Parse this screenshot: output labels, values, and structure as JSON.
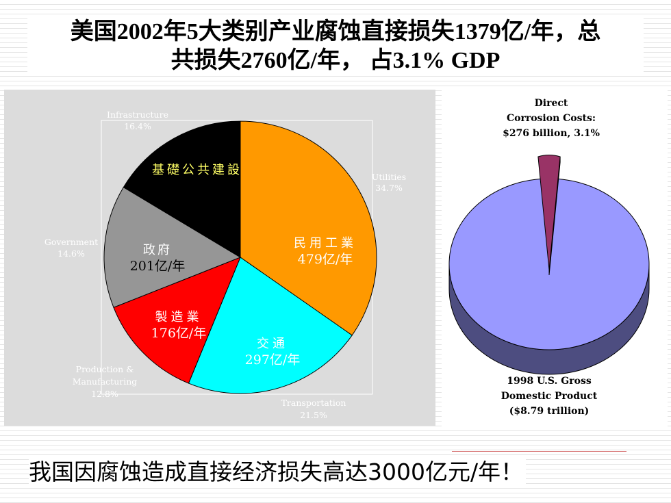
{
  "title_line1": "美国2002年5大类别产业腐蚀直接损失1379亿/年，总",
  "title_line2": "共损失2760亿/年， 占3.1% GDP",
  "bottom_text": "我国因腐蚀造成直接经济损失高达3000亿元/年！",
  "colors": {
    "utilities": "#ff9900",
    "transportation": "#00ffff",
    "production": "#ff0000",
    "government": "#969696",
    "infrastructure": "#000000",
    "gdp_body": "#9999ff",
    "gdp_slice": "#993366"
  },
  "chart_data": [
    {
      "type": "pie",
      "slices": [
        {
          "category": "Utilities",
          "percent": "34.7%",
          "value": 34.7,
          "inner_label": "民用工業",
          "inner_value": "479亿/年",
          "color": "#ff9900"
        },
        {
          "category": "Transportation",
          "percent": "21.5%",
          "value": 21.5,
          "inner_label": "交通",
          "inner_value": "297亿/年",
          "color": "#00ffff"
        },
        {
          "category": "Production & Manufacturing",
          "percent": "12.8%",
          "value": 12.8,
          "inner_label": "製造業",
          "inner_value": "176亿/年",
          "color": "#ff0000"
        },
        {
          "category": "Government",
          "percent": "14.6%",
          "value": 14.6,
          "inner_label": "政府",
          "inner_value": "201亿/年",
          "color": "#969696"
        },
        {
          "category": "Infrastructure",
          "percent": "16.4%",
          "value": 16.4,
          "inner_label": "基礎公共建設",
          "inner_value": "",
          "color": "#000000"
        }
      ]
    },
    {
      "type": "pie",
      "labels": {
        "direct": [
          "Direct",
          "Corrosion Costs:",
          "$276 billion, 3.1%"
        ],
        "gdp": [
          "1998 U.S. Gross",
          "Domestic Product",
          "($8.79 trillion)"
        ]
      },
      "slices": [
        {
          "name": "Direct Corrosion Costs",
          "value": 3.1,
          "color": "#993366"
        },
        {
          "name": "U.S. GDP",
          "value": 96.9,
          "color": "#9999ff"
        }
      ]
    }
  ]
}
